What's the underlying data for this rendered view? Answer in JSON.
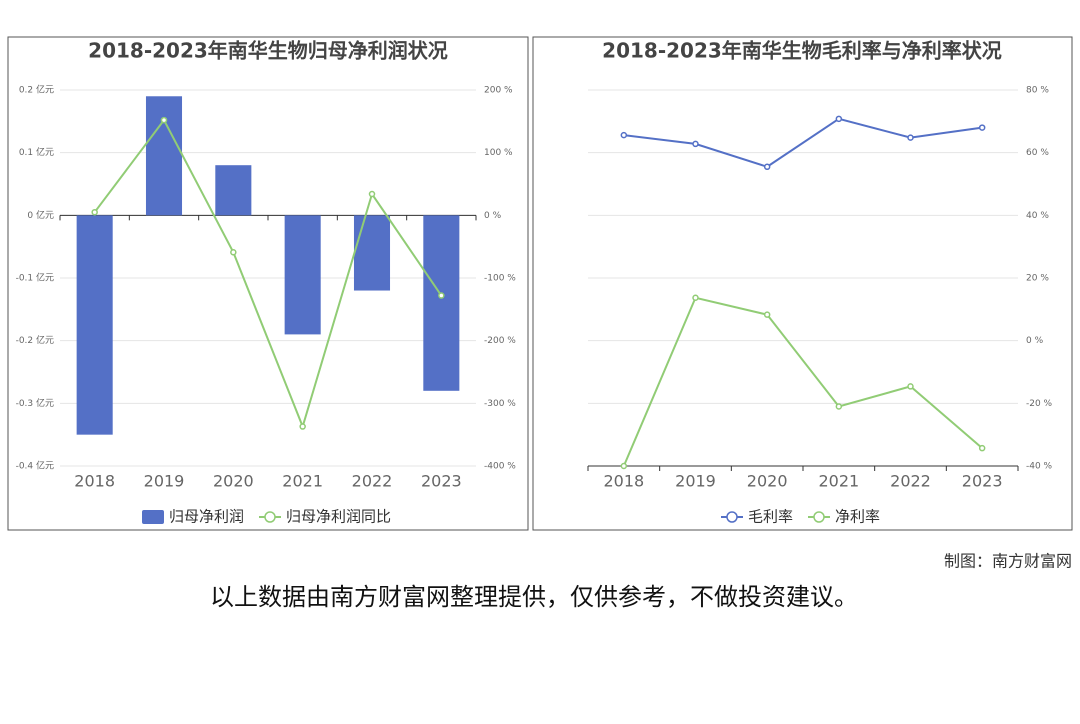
{
  "chart_data": [
    {
      "type": "combo",
      "title": "2018-2023年南华生物归母净利润状况",
      "categories": [
        "2018",
        "2019",
        "2020",
        "2021",
        "2022",
        "2023"
      ],
      "series": [
        {
          "name": "归母净利润",
          "type": "bar",
          "color": "#5470c6",
          "values": [
            -0.35,
            0.19,
            0.08,
            -0.19,
            -0.12,
            -0.28
          ]
        },
        {
          "name": "归母净利润同比",
          "type": "line",
          "axis": "y2",
          "color": "#91cc75",
          "values": [
            5,
            152,
            -59,
            -337,
            34,
            -128
          ]
        }
      ],
      "ylim": [
        -0.4,
        0.2
      ],
      "yticks": [
        {
          "value": -0.4,
          "label": "-0.4 亿元"
        },
        {
          "value": -0.3,
          "label": "-0.3 亿元"
        },
        {
          "value": -0.2,
          "label": "-0.2 亿元"
        },
        {
          "value": -0.1,
          "label": "-0.1 亿元"
        },
        {
          "value": 0,
          "label": "0 亿元"
        },
        {
          "value": 0.1,
          "label": "0.1 亿元"
        },
        {
          "value": 0.2,
          "label": "0.2 亿元"
        }
      ],
      "y2lim": [
        -400,
        200
      ],
      "y2ticks": [
        {
          "value": -400,
          "label": "-400 %"
        },
        {
          "value": -300,
          "label": "-300 %"
        },
        {
          "value": -200,
          "label": "-200 %"
        },
        {
          "value": -100,
          "label": "-100 %"
        },
        {
          "value": 0,
          "label": "0 %"
        },
        {
          "value": 100,
          "label": "100 %"
        },
        {
          "value": 200,
          "label": "200 %"
        }
      ],
      "grid": true,
      "legend": "bottom"
    },
    {
      "type": "line",
      "title": "2018-2023年南华生物毛利率与净利率状况",
      "categories": [
        "2018",
        "2019",
        "2020",
        "2021",
        "2022",
        "2023"
      ],
      "series": [
        {
          "name": "毛利率",
          "type": "line",
          "axis": "y2",
          "color": "#5470c6",
          "values": [
            65.6,
            62.8,
            55.5,
            70.8,
            64.8,
            68.0
          ]
        },
        {
          "name": "净利率",
          "type": "line",
          "axis": "y2",
          "color": "#91cc75",
          "values": [
            -40.0,
            13.7,
            8.3,
            -21.0,
            -14.6,
            -34.3
          ]
        }
      ],
      "y2lim": [
        -40,
        80
      ],
      "y2ticks": [
        {
          "value": -40,
          "label": "-40 %"
        },
        {
          "value": -20,
          "label": "-20 %"
        },
        {
          "value": 0,
          "label": "0 %"
        },
        {
          "value": 20,
          "label": "20 %"
        },
        {
          "value": 40,
          "label": "40 %"
        },
        {
          "value": 60,
          "label": "60 %"
        },
        {
          "value": 80,
          "label": "80 %"
        }
      ],
      "grid": true,
      "legend": "bottom"
    }
  ],
  "credit": "制图：南方财富网",
  "footer": "以上数据由南方财富网整理提供，仅供参考，不做投资建议。"
}
